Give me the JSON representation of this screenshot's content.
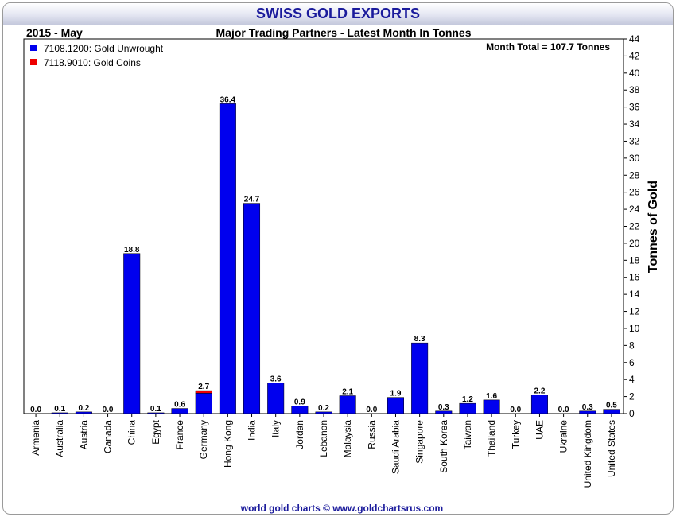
{
  "page": {
    "title": "SWISS GOLD EXPORTS",
    "footer": "world gold charts © www.goldchartsrus.com"
  },
  "chart_data": {
    "type": "bar",
    "stacked": true,
    "period": "2015 - May",
    "title": "Major Trading Partners - Latest Month In Tonnes",
    "annotation": "Month Total = 107.7 Tonnes",
    "ylabel": "Tonnes of Gold",
    "xlabel": "",
    "ylim": [
      0,
      44
    ],
    "ytick_step": 2,
    "grid": false,
    "legend_position": "top-left",
    "y_axis_side": "right",
    "categories": [
      "Armenia",
      "Australia",
      "Austria",
      "Canada",
      "China",
      "Egypt",
      "France",
      "Germany",
      "Hong Kong",
      "India",
      "Italy",
      "Jordan",
      "Lebanon",
      "Malaysia",
      "Russia",
      "Saudi Arabia",
      "Singapore",
      "South Korea",
      "Taiwan",
      "Thailand",
      "Turkey",
      "UAE",
      "Ukraine",
      "United Kingdom",
      "United States"
    ],
    "series": [
      {
        "name": "7108.1200: Gold Unwrought",
        "color": "#0000ee",
        "values": [
          0.0,
          0.1,
          0.2,
          0.0,
          18.8,
          0.1,
          0.6,
          2.4,
          36.4,
          24.7,
          3.6,
          0.9,
          0.2,
          2.1,
          0.0,
          1.9,
          8.3,
          0.3,
          1.2,
          1.6,
          0.0,
          2.2,
          0.0,
          0.3,
          0.5
        ]
      },
      {
        "name": "7118.9010: Gold Coins",
        "color": "#ee0000",
        "values": [
          0,
          0,
          0,
          0,
          0,
          0,
          0,
          0.3,
          0,
          0,
          0,
          0,
          0,
          0,
          0,
          0,
          0,
          0,
          0,
          0,
          0,
          0,
          0,
          0,
          0
        ]
      }
    ],
    "data_labels": [
      "0.0",
      "0.1",
      "0.2",
      "0.0",
      "18.8",
      "0.1",
      "0.6",
      "2.7",
      "36.4",
      "24.7",
      "3.6",
      "0.9",
      "0.2",
      "2.1",
      "0.0",
      "1.9",
      "8.3",
      "0.3",
      "1.2",
      "1.6",
      "0.0",
      "2.2",
      "0.0",
      "0.3",
      "0.5"
    ]
  }
}
